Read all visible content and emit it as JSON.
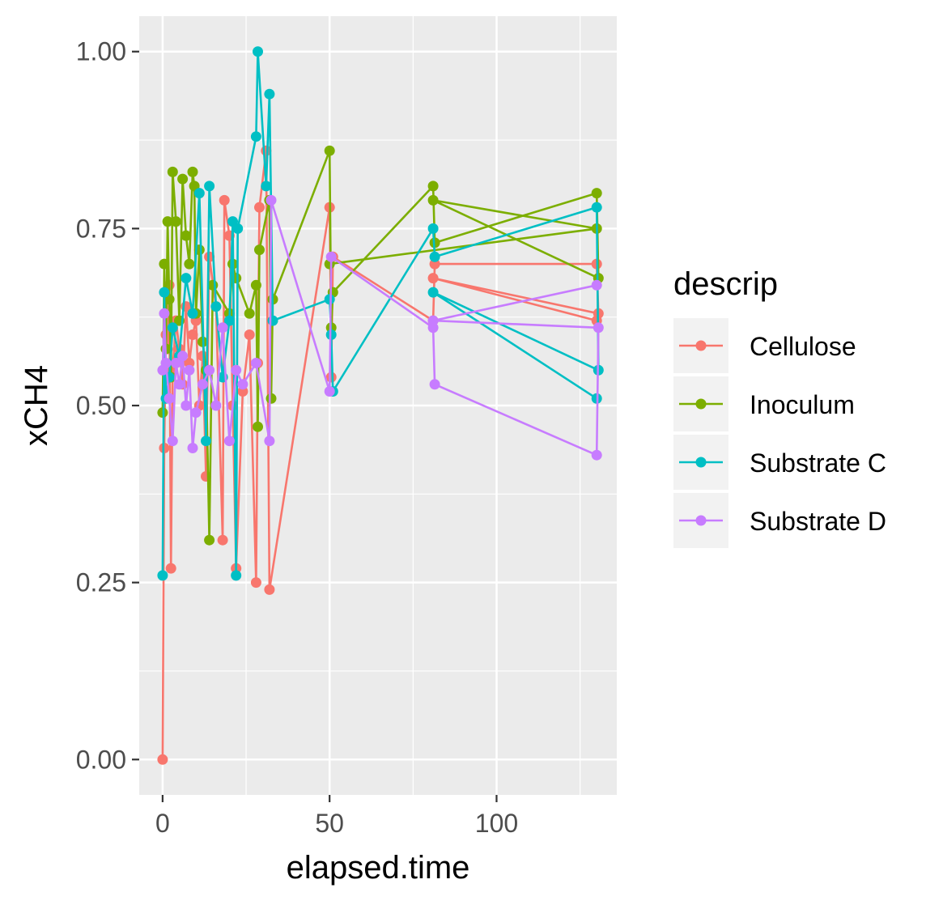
{
  "chart_data": {
    "type": "line",
    "title": "",
    "xlabel": "elapsed.time",
    "ylabel": "xCH4",
    "x_ticks": [
      "0",
      "50",
      "100"
    ],
    "y_ticks": [
      "0.00",
      "0.25",
      "0.50",
      "0.75",
      "1.00"
    ],
    "xlim": [
      -7,
      136
    ],
    "ylim": [
      -0.05,
      1.05
    ],
    "grid": true,
    "legend": {
      "title": "descrip",
      "position": "right"
    },
    "series": [
      {
        "name": "Cellulose",
        "color": "#F8766D",
        "points": [
          [
            0,
            0.0
          ],
          [
            0.5,
            0.44
          ],
          [
            1,
            0.6
          ],
          [
            1.5,
            0.58
          ],
          [
            2,
            0.67
          ],
          [
            2.5,
            0.27
          ],
          [
            3,
            0.55
          ],
          [
            4,
            0.62
          ],
          [
            5,
            0.58
          ],
          [
            6,
            0.53
          ],
          [
            7,
            0.64
          ],
          [
            8,
            0.56
          ],
          [
            9,
            0.6
          ],
          [
            10,
            0.62
          ],
          [
            11,
            0.5
          ],
          [
            12,
            0.57
          ],
          [
            13,
            0.4
          ],
          [
            14,
            0.71
          ],
          [
            16,
            0.64
          ],
          [
            18,
            0.31
          ],
          [
            18.5,
            0.79
          ],
          [
            20,
            0.74
          ],
          [
            21,
            0.5
          ],
          [
            22,
            0.27
          ],
          [
            24,
            0.52
          ],
          [
            26,
            0.6
          ],
          [
            28,
            0.25
          ],
          [
            28.5,
            0.56
          ],
          [
            29,
            0.78
          ],
          [
            31,
            0.86
          ],
          [
            32,
            0.24
          ],
          [
            50,
            0.78
          ],
          [
            50.5,
            0.54
          ],
          [
            51,
            0.71
          ],
          [
            81,
            0.62
          ],
          [
            81.5,
            0.7
          ],
          [
            130,
            0.7
          ],
          [
            130.5,
            0.63
          ],
          [
            81,
            0.68
          ],
          [
            130,
            0.62
          ]
        ]
      },
      {
        "name": "Inoculum",
        "color": "#7CAE00",
        "points": [
          [
            0,
            0.49
          ],
          [
            0.5,
            0.7
          ],
          [
            1,
            0.58
          ],
          [
            1.5,
            0.76
          ],
          [
            2,
            0.65
          ],
          [
            2.5,
            0.54
          ],
          [
            3,
            0.83
          ],
          [
            4,
            0.76
          ],
          [
            5,
            0.62
          ],
          [
            6,
            0.82
          ],
          [
            7,
            0.74
          ],
          [
            8,
            0.7
          ],
          [
            9,
            0.83
          ],
          [
            9.5,
            0.81
          ],
          [
            10,
            0.63
          ],
          [
            11,
            0.72
          ],
          [
            12,
            0.59
          ],
          [
            13,
            0.55
          ],
          [
            14,
            0.31
          ],
          [
            15,
            0.67
          ],
          [
            20,
            0.63
          ],
          [
            21,
            0.7
          ],
          [
            22,
            0.68
          ],
          [
            26,
            0.63
          ],
          [
            28,
            0.67
          ],
          [
            28.5,
            0.47
          ],
          [
            29,
            0.72
          ],
          [
            32,
            0.79
          ],
          [
            32.5,
            0.51
          ],
          [
            33,
            0.65
          ],
          [
            50,
            0.86
          ],
          [
            50.5,
            0.61
          ],
          [
            51,
            0.66
          ],
          [
            81,
            0.81
          ],
          [
            81.5,
            0.73
          ],
          [
            130,
            0.8
          ],
          [
            130.5,
            0.68
          ],
          [
            81,
            0.79
          ],
          [
            130,
            0.75
          ],
          [
            50,
            0.7
          ]
        ]
      },
      {
        "name": "Substrate C",
        "color": "#00BFC4",
        "points": [
          [
            0,
            0.26
          ],
          [
            0.5,
            0.66
          ],
          [
            1,
            0.51
          ],
          [
            2,
            0.54
          ],
          [
            3,
            0.61
          ],
          [
            5,
            0.57
          ],
          [
            7,
            0.68
          ],
          [
            9,
            0.63
          ],
          [
            11,
            0.8
          ],
          [
            13,
            0.45
          ],
          [
            14,
            0.81
          ],
          [
            16,
            0.64
          ],
          [
            18,
            0.54
          ],
          [
            20,
            0.62
          ],
          [
            21,
            0.76
          ],
          [
            22,
            0.26
          ],
          [
            22.5,
            0.75
          ],
          [
            28,
            0.88
          ],
          [
            28.5,
            1.0
          ],
          [
            31,
            0.81
          ],
          [
            32,
            0.94
          ],
          [
            33,
            0.62
          ],
          [
            50,
            0.65
          ],
          [
            50.5,
            0.6
          ],
          [
            51,
            0.52
          ],
          [
            81,
            0.75
          ],
          [
            81.5,
            0.71
          ],
          [
            130,
            0.78
          ],
          [
            130.5,
            0.55
          ],
          [
            81,
            0.66
          ],
          [
            130,
            0.51
          ]
        ]
      },
      {
        "name": "Substrate D",
        "color": "#C77CFF",
        "points": [
          [
            0,
            0.55
          ],
          [
            0.5,
            0.63
          ],
          [
            1,
            0.56
          ],
          [
            2,
            0.51
          ],
          [
            3,
            0.45
          ],
          [
            4,
            0.56
          ],
          [
            5,
            0.53
          ],
          [
            6,
            0.57
          ],
          [
            7,
            0.5
          ],
          [
            8,
            0.55
          ],
          [
            9,
            0.44
          ],
          [
            10,
            0.49
          ],
          [
            12,
            0.53
          ],
          [
            14,
            0.55
          ],
          [
            16,
            0.5
          ],
          [
            18,
            0.61
          ],
          [
            20,
            0.45
          ],
          [
            22,
            0.55
          ],
          [
            24,
            0.53
          ],
          [
            28,
            0.56
          ],
          [
            32,
            0.45
          ],
          [
            32.5,
            0.79
          ],
          [
            50,
            0.52
          ],
          [
            50.5,
            0.71
          ],
          [
            81,
            0.61
          ],
          [
            81.5,
            0.53
          ],
          [
            130,
            0.43
          ],
          [
            130.5,
            0.61
          ],
          [
            81,
            0.62
          ],
          [
            130,
            0.67
          ]
        ]
      }
    ]
  }
}
